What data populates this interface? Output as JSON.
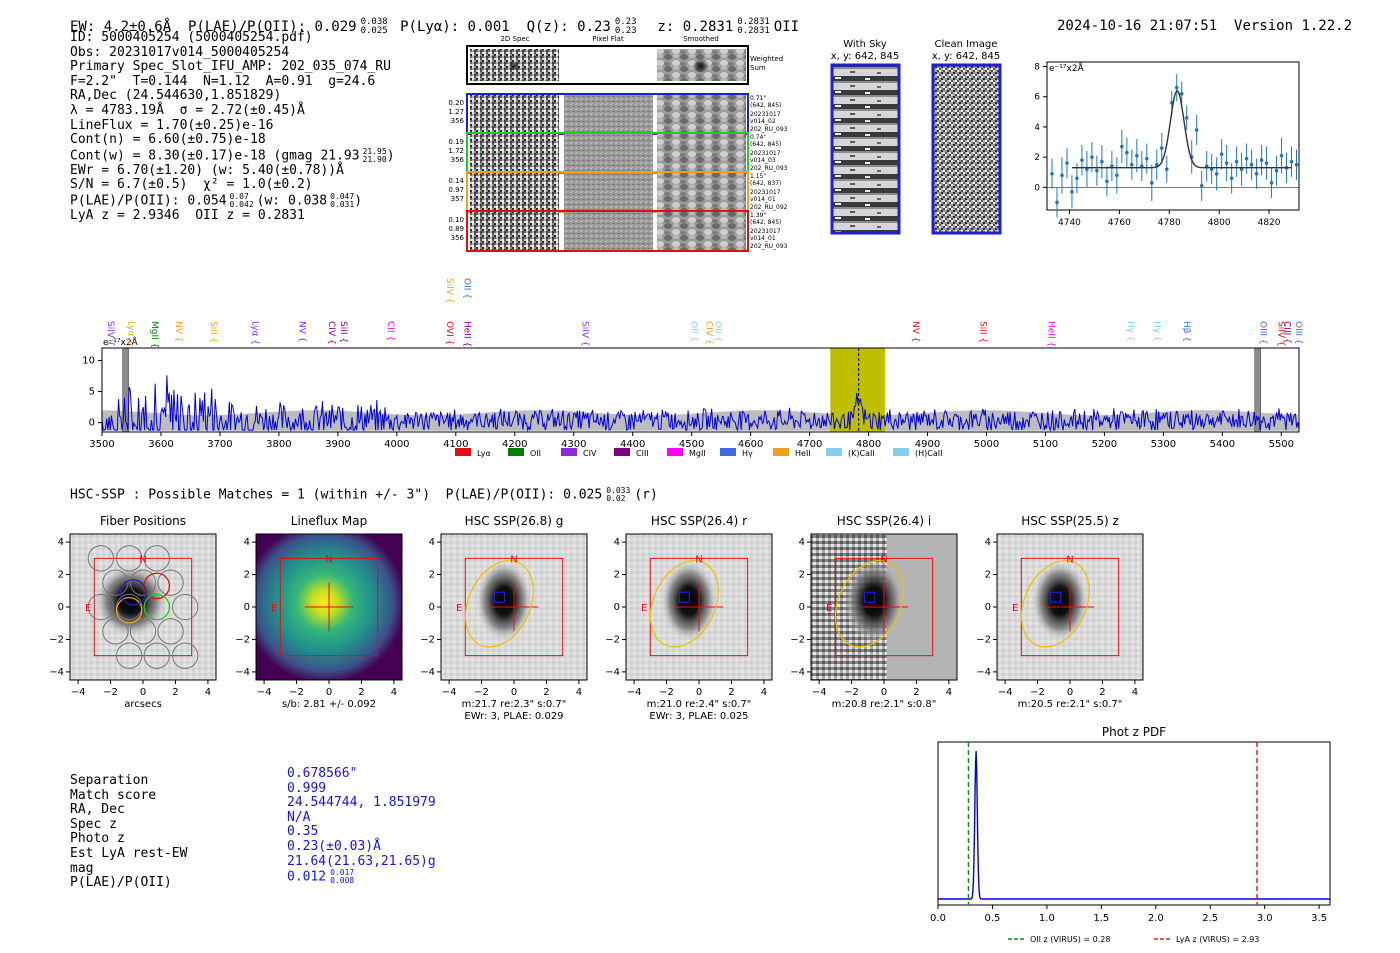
{
  "header": {
    "left": "EW: 4.2±0.6Å  P(LAE)/P(OII): 0.029 0.038/0.025  P(Lyα): 0.001  Q(z): 0.23 0.23/0.23  z: 0.2831 0.2831/0.2831 OII",
    "ew": "EW: 4.2±0.6Å",
    "plae": "P(LAE)/P(OII): 0.029",
    "plae_hi": "0.038",
    "plae_lo": "0.025",
    "plya": "P(Lyα): 0.001",
    "qz": "Q(z): 0.23",
    "qz_hi": "0.23",
    "qz_lo": "0.23",
    "z": "z: 0.2831",
    "z_hi": "0.2831",
    "z_lo": "0.2831",
    "z_type": "OII",
    "datetime": "2024-10-16 21:07:51",
    "version": "Version 1.22.2"
  },
  "info": {
    "id": "ID: 5000405254 (5000405254.pdf)",
    "obs": "Obs: 20231017v014_5000405254",
    "primary": "Primary Spec_Slot_IFU_AMP: 202_035_074_RU",
    "fit": "F=2.2\"  T=0.144  N=1.12  A=0.91  g=24.6",
    "radec": "RA,Dec (24.544630,1.851829)",
    "lambda": "λ = 4783.19Å  σ = 2.72(±0.45)Å",
    "lineflux": "LineFlux = 1.70(±0.25)e-16",
    "cont_n": "Cont(n) = 6.60(±0.75)e-18",
    "cont_w": "Cont(w) = 8.30(±0.17)e-18 (gmag 21.93",
    "cont_w_hi": "21.95",
    "cont_w_lo": "21.90",
    "ewr": "EWr = 6.70(±1.20) (w: 5.40(±0.78))Å",
    "sn": "S/N = 6.7(±0.5)  χ² = 1.0(±0.2)",
    "plae": "P(LAE)/P(OII): 0.054",
    "plae_hi": "0.07",
    "plae_lo": "0.042",
    "plae_w": "(w: 0.038",
    "plae_w_hi": "0.047",
    "plae_w_lo": "0.031",
    "z": "LyA z = 2.9346  OII z = 0.2831"
  },
  "cutouts": {
    "col_titles": [
      "2D Spec",
      "Pixel Flat",
      "Smoothed"
    ],
    "weighted_label": "Weighted Sum",
    "rows": [
      {
        "stats": [
          "0.20",
          "1.27",
          "356"
        ],
        "color": "#1f1fd0",
        "meta": [
          "0.71\"",
          "(642, 845)",
          "20231017",
          "v014_02",
          "202_RU_093"
        ]
      },
      {
        "stats": [
          "0.19",
          "1.72",
          "356"
        ],
        "color": "#22cc22",
        "meta": [
          "0.74\"",
          "(642, 845)",
          "20231017",
          "v014_03",
          "202_RU_093"
        ]
      },
      {
        "stats": [
          "0.14",
          "0.97",
          "357"
        ],
        "color": "#f0a020",
        "meta": [
          "1.15\"",
          "(642, 837)",
          "20231017",
          "v014_01",
          "202_RU_092"
        ]
      },
      {
        "stats": [
          "0.10",
          "0.89",
          "356"
        ],
        "color": "#e01010",
        "meta": [
          "1.39\"",
          "(642, 845)",
          "20231017",
          "v014_01",
          "202_RU_093"
        ]
      }
    ]
  },
  "sky_images": {
    "with_sky_title": "With Sky",
    "with_sky_coords": "x, y: 642, 845",
    "clean_title": "Clean Image",
    "clean_coords": "x, y: 642, 845"
  },
  "line_zoom": {
    "type": "scatter",
    "unit": "e⁻¹⁷x2Å",
    "x_ticks": [
      "4740",
      "4760",
      "4780",
      "4800",
      "4820"
    ],
    "y_ticks": [
      "0",
      "2",
      "4",
      "6",
      "8"
    ],
    "xlim": [
      4731,
      4832
    ],
    "ylim": [
      -1.5,
      8.3
    ],
    "continuum": 1.3,
    "peak_center": 4783.19,
    "peak_amp": 5.1,
    "peak_sigma": 2.72,
    "x": [
      4733,
      4735,
      4737,
      4739,
      4741,
      4743,
      4745,
      4747,
      4749,
      4751,
      4753,
      4755,
      4757,
      4759,
      4761,
      4763,
      4765,
      4767,
      4769,
      4771,
      4773,
      4775,
      4777,
      4779,
      4781,
      4783,
      4785,
      4787,
      4789,
      4791,
      4793,
      4795,
      4797,
      4799,
      4801,
      4803,
      4805,
      4807,
      4809,
      4811,
      4813,
      4815,
      4817,
      4819,
      4821,
      4823,
      4825,
      4827,
      4829,
      4831
    ],
    "y": [
      0.9,
      -1.0,
      0.8,
      1.6,
      -0.3,
      0.6,
      1.8,
      1.2,
      2.0,
      1.1,
      1.7,
      0.4,
      1.4,
      0.8,
      2.7,
      2.3,
      1.5,
      2.1,
      1.4,
      1.9,
      0.3,
      1.5,
      2.6,
      1.2,
      5.6,
      6.6,
      6.2,
      4.6,
      2.0,
      3.8,
      0.1,
      1.4,
      1.2,
      0.9,
      2.2,
      1.6,
      0.6,
      1.7,
      1.2,
      1.9,
      1.5,
      0.9,
      1.8,
      1.6,
      0.3,
      1.1,
      2.1,
      1.3,
      1.7,
      1.5
    ],
    "err": [
      1.0,
      1.0,
      1.2,
      1.0,
      1.1,
      1.0,
      1.0,
      1.2,
      1.0,
      1.0,
      1.1,
      1.0,
      1.0,
      1.2,
      1.1,
      1.0,
      1.0,
      1.1,
      1.0,
      1.0,
      1.2,
      1.0,
      1.0,
      0.9,
      0.8,
      0.9,
      0.8,
      0.8,
      1.1,
      1.0,
      1.0,
      1.0,
      1.0,
      1.1,
      1.0,
      1.2,
      1.0,
      1.0,
      1.1,
      1.0,
      1.0,
      1.0,
      1.0,
      1.1,
      1.0,
      1.0,
      1.2,
      1.0,
      1.0,
      1.0
    ]
  },
  "chart_data": {
    "type": "line",
    "title": "",
    "ylabel": "e⁻¹⁷x2Å",
    "xlim": [
      3500,
      5530
    ],
    "ylim": [
      -1.5,
      12
    ],
    "x_ticks": [
      "3500",
      "3600",
      "3700",
      "3800",
      "3900",
      "4000",
      "4100",
      "4200",
      "4300",
      "4400",
      "4500",
      "4600",
      "4700",
      "4800",
      "4900",
      "5000",
      "5100",
      "5200",
      "5300",
      "5400",
      "5500"
    ],
    "y_ticks": [
      "0",
      "5",
      "10"
    ],
    "line_window": [
      4735,
      4828
    ],
    "line_center": 4783.19,
    "masked_regions": [
      [
        3535,
        3545
      ],
      [
        5455,
        5465
      ]
    ],
    "line_labels": [
      {
        "x": 3505,
        "label": "SiIV",
        "color": "#8a2be2"
      },
      {
        "x": 3540,
        "label": "Lyα",
        "color": "#f0a020"
      },
      {
        "x": 3580,
        "label": "MgII",
        "color": "#008000"
      },
      {
        "x": 3620,
        "label": "NV",
        "color": "#f0a020"
      },
      {
        "x": 3680,
        "label": "SiII",
        "color": "#f0a020"
      },
      {
        "x": 3750,
        "label": "Lyα",
        "color": "#8a2be2"
      },
      {
        "x": 3830,
        "label": "NV",
        "color": "#8a2be2"
      },
      {
        "x": 3880,
        "label": "CIV",
        "color": "#800080"
      },
      {
        "x": 3900,
        "label": "SiII",
        "color": "#800080"
      },
      {
        "x": 3980,
        "label": "CII",
        "color": "#ff00ff"
      },
      {
        "x": 4080,
        "label": "OVI",
        "color": "#e01010"
      },
      {
        "x": 4110,
        "label": "HeII",
        "color": "#800080"
      },
      {
        "x": 4310,
        "label": "SiIV",
        "color": "#8a2be2"
      },
      {
        "x": 4495,
        "label": "OII",
        "color": "#87ceeb"
      },
      {
        "x": 4520,
        "label": "CIV",
        "color": "#f0a020"
      },
      {
        "x": 4535,
        "label": "OII",
        "color": "#87ceeb"
      },
      {
        "x": 4870,
        "label": "NV",
        "color": "#e01010"
      },
      {
        "x": 4985,
        "label": "SiII",
        "color": "#e01010"
      },
      {
        "x": 5100,
        "label": "HeII",
        "color": "#ff00ff"
      },
      {
        "x": 5235,
        "label": "Hγ",
        "color": "#87ceeb"
      },
      {
        "x": 5280,
        "label": "Hγ",
        "color": "#87ceeb"
      },
      {
        "x": 5330,
        "label": "Hβ",
        "color": "#4169e1"
      },
      {
        "x": 5460,
        "label": "OIII",
        "color": "#4169e1"
      },
      {
        "x": 5490,
        "label": "SiIV",
        "color": "#e01010"
      },
      {
        "x": 5500,
        "label": "CIII",
        "color": "#800080"
      },
      {
        "x": 5520,
        "label": "OIII",
        "color": "#4169e1"
      }
    ],
    "upper_labels": [
      {
        "x": 4080,
        "label": "SiIV",
        "color": "#f0a020"
      },
      {
        "x": 4110,
        "label": "OII",
        "color": "#4169e1"
      }
    ],
    "legend": [
      {
        "label": "Lyα",
        "color": "#e01010"
      },
      {
        "label": "OII",
        "color": "#008000"
      },
      {
        "label": "CIV",
        "color": "#8a2be2"
      },
      {
        "label": "CIII",
        "color": "#800080"
      },
      {
        "label": "MgII",
        "color": "#ff00ff"
      },
      {
        "label": "Hγ",
        "color": "#4169e1"
      },
      {
        "label": "HeII",
        "color": "#f0a020"
      },
      {
        "label": "(K)CaII",
        "color": "#87ceeb"
      },
      {
        "label": "(H)CaII",
        "color": "#87ceeb"
      }
    ]
  },
  "hsc": {
    "summary": "HSC-SSP : Possible Matches = 1 (within +/- 3\")  P(LAE)/P(OII): 0.025",
    "summary_hi": "0.033",
    "summary_lo": "0.02",
    "summary_band": "(r)",
    "ticks": [
      "−4",
      "−2",
      "0",
      "2",
      "4"
    ],
    "panels": [
      {
        "title": "Fiber Positions",
        "cap1": "arcsecs",
        "cap2": "",
        "N": "N",
        "E": "E"
      },
      {
        "title": "Lineflux Map",
        "cap1": "s/b: 2.81 +/- 0.092",
        "cap2": "",
        "N": "N",
        "E": "E"
      },
      {
        "title": "HSC SSP(26.8) g",
        "cap1": "m:21.7  re:2.3\"  s:0.7\"",
        "cap2": "EWr: 3, PLAE: 0.029",
        "N": "N",
        "E": "E"
      },
      {
        "title": "HSC SSP(26.4) r",
        "cap1": "m:21.0  re:2.4\"  s:0.7\"",
        "cap2": "EWr: 3, PLAE: 0.025",
        "N": "N",
        "E": "E"
      },
      {
        "title": "HSC SSP(26.4) i",
        "cap1": "m:20.8  re:2.1\"  s:0.8\"",
        "cap2": "",
        "N": "N",
        "E": "E"
      },
      {
        "title": "HSC SSP(25.5) z",
        "cap1": "m:20.5  re:2.1\"  s:0.7\"",
        "cap2": "",
        "N": "N",
        "E": "E"
      }
    ]
  },
  "match": {
    "labels": [
      "Separation",
      "Match score",
      "RA, Dec",
      "Spec z",
      "Photo z",
      "Est LyA rest-EW",
      "mag",
      "P(LAE)/P(OII)"
    ],
    "values": [
      "0.678566\"",
      "0.999",
      "24.544744, 1.851979",
      "N/A",
      "0.35",
      "0.23(±0.03)Å",
      "21.64(21.63,21.65)g",
      "0.012"
    ],
    "plae_hi": "0.017",
    "plae_lo": "0.008"
  },
  "photz": {
    "title": "Phot z PDF",
    "x_ticks": [
      "0.0",
      "0.5",
      "1.0",
      "1.5",
      "2.0",
      "2.5",
      "3.0",
      "3.5"
    ],
    "xlim": [
      0,
      3.6
    ],
    "peak_z": 0.35,
    "oii_z": 0.28,
    "lya_z": 2.93,
    "legend_oii": "OII z (VIRUS) = 0.28",
    "legend_lya": "LyA z (VIRUS) = 2.93",
    "oii_color": "#1a8a1a",
    "lya_color": "#d62728"
  }
}
